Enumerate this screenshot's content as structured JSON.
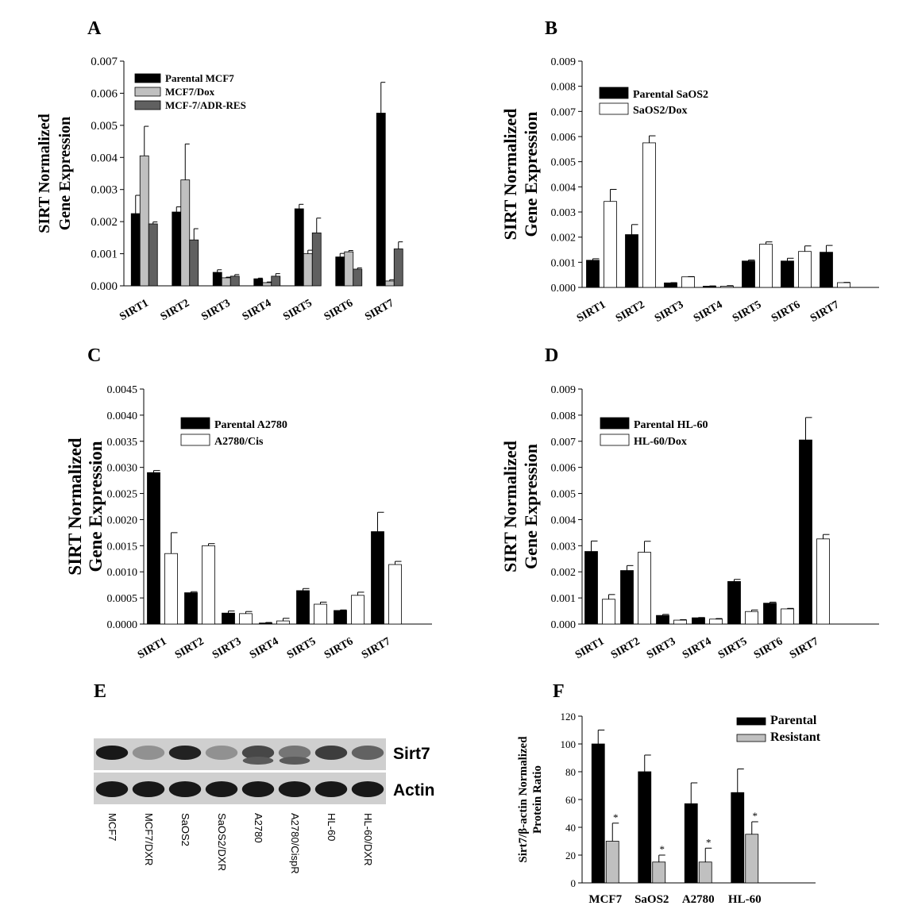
{
  "chart_data": [
    {
      "panel": "A",
      "type": "bar",
      "categories": [
        "SIRT1",
        "SIRT2",
        "SIRT3",
        "SIRT4",
        "SIRT5",
        "SIRT6",
        "SIRT7"
      ],
      "ylabel_lines": [
        "SIRT Normalized",
        "Gene Expression"
      ],
      "ylim": [
        0,
        0.007
      ],
      "yticks": [
        "0.000",
        "0.001",
        "0.002",
        "0.003",
        "0.004",
        "0.005",
        "0.006",
        "0.007"
      ],
      "legend_position": "top-left",
      "series": [
        {
          "name": "Parental MCF7",
          "color": "#000000",
          "values": [
            0.00225,
            0.0023,
            0.00042,
            0.00022,
            0.0024,
            0.0009,
            0.00538
          ],
          "errors": [
            0.00057,
            0.00016,
            8e-05,
            2e-05,
            0.00014,
            0.00011,
            0.00096
          ]
        },
        {
          "name": "MCF7/Dox",
          "color": "#c0c0c0",
          "values": [
            0.00405,
            0.0033,
            0.00025,
            0.0001,
            0.001,
            0.00106,
            0.00015
          ],
          "errors": [
            0.00092,
            0.00112,
            2e-05,
            2e-05,
            0.00011,
            4e-05,
            4e-05
          ]
        },
        {
          "name": "MCF-7/ADR-RES",
          "color": "#606060",
          "values": [
            0.00193,
            0.00143,
            0.0003,
            0.0003,
            0.00165,
            0.00052,
            0.00115
          ],
          "errors": [
            6e-05,
            0.00035,
            5e-05,
            8e-05,
            0.00046,
            4e-05,
            0.00022
          ]
        }
      ]
    },
    {
      "panel": "B",
      "type": "bar",
      "categories": [
        "SIRT1",
        "SIRT2",
        "SIRT3",
        "SIRT4",
        "SIRT5",
        "SIRT6",
        "SIRT7"
      ],
      "ylabel_lines": [
        "SIRT Normalized",
        "Gene Expression"
      ],
      "ylim": [
        0,
        0.009
      ],
      "yticks": [
        "0.000",
        "0.001",
        "0.002",
        "0.003",
        "0.004",
        "0.005",
        "0.006",
        "0.007",
        "0.008",
        "0.009"
      ],
      "legend_position": "top-left",
      "series": [
        {
          "name": "Parental SaOS2",
          "color": "#000000",
          "values": [
            0.00108,
            0.0021,
            0.00018,
            5e-05,
            0.00105,
            0.00105,
            0.0014
          ],
          "errors": [
            6e-05,
            0.0004,
            1e-05,
            1e-05,
            4e-05,
            0.00011,
            0.00027
          ]
        },
        {
          "name": "SaOS2/Dox",
          "color": "#ffffff",
          "values": [
            0.00342,
            0.00575,
            0.00042,
            5e-05,
            0.00172,
            0.00143,
            0.00019
          ],
          "errors": [
            0.00048,
            0.00028,
            1e-05,
            2e-05,
            9e-05,
            0.00022,
            1e-05
          ]
        }
      ]
    },
    {
      "panel": "C",
      "type": "bar",
      "categories": [
        "SIRT1",
        "SIRT2",
        "SIRT3",
        "SIRT4",
        "SIRT5",
        "SIRT6",
        "SIRT7"
      ],
      "ylabel_lines": [
        "SIRT Normalized",
        "Gene Expression"
      ],
      "ylim": [
        0,
        0.0045
      ],
      "yticks": [
        "0.0000",
        "0.0005",
        "0.0010",
        "0.0015",
        "0.0020",
        "0.0025",
        "0.0030",
        "0.0035",
        "0.0040",
        "0.0045"
      ],
      "legend_position": "top-left",
      "series": [
        {
          "name": "Parental A2780",
          "color": "#000000",
          "values": [
            0.0029,
            0.0006,
            0.00021,
            2e-05,
            0.00064,
            0.00026,
            0.00177
          ],
          "errors": [
            4e-05,
            2e-05,
            4e-05,
            1e-05,
            4e-05,
            1e-05,
            0.00037
          ]
        },
        {
          "name": "A2780/Cis",
          "color": "#ffffff",
          "values": [
            0.00135,
            0.0015,
            0.0002,
            6e-05,
            0.00038,
            0.00055,
            0.00114
          ],
          "errors": [
            0.0004,
            4e-05,
            4e-05,
            5e-05,
            4e-05,
            6e-05,
            6e-05
          ]
        }
      ]
    },
    {
      "panel": "D",
      "type": "bar",
      "categories": [
        "SIRT1",
        "SIRT2",
        "SIRT3",
        "SIRT4",
        "SIRT5",
        "SIRT6",
        "SIRT7"
      ],
      "ylabel_lines": [
        "SIRT Normalized",
        "Gene Expression"
      ],
      "ylim": [
        0,
        0.009
      ],
      "yticks": [
        "0.000",
        "0.001",
        "0.002",
        "0.003",
        "0.004",
        "0.005",
        "0.006",
        "0.007",
        "0.008",
        "0.009"
      ],
      "legend_position": "top-left",
      "series": [
        {
          "name": "Parental HL-60",
          "color": "#000000",
          "values": [
            0.00278,
            0.00205,
            0.00033,
            0.00024,
            0.00163,
            0.0008,
            0.00705
          ],
          "errors": [
            0.0004,
            0.00019,
            4e-05,
            1e-05,
            8e-05,
            4e-05,
            0.00086
          ]
        },
        {
          "name": "HL-60/Dox",
          "color": "#ffffff",
          "values": [
            0.00095,
            0.00275,
            0.00015,
            0.00019,
            0.00048,
            0.00058,
            0.00326
          ],
          "errors": [
            0.00018,
            0.00042,
            2e-05,
            2e-05,
            6e-05,
            2e-05,
            0.00017
          ]
        }
      ]
    },
    {
      "panel": "E",
      "type": "blot",
      "lanes": [
        "MCF7",
        "MCF7/DXR",
        "SaOS2",
        "SaOS2/DXR",
        "A2780",
        "A2780/CispR",
        "HL-60",
        "HL-60/DXR"
      ],
      "rows": [
        {
          "label": "Sirt7",
          "intensity": [
            0.95,
            0.3,
            0.9,
            0.3,
            0.7,
            0.45,
            0.75,
            0.55
          ]
        },
        {
          "label": "Actin",
          "intensity": [
            0.95,
            0.95,
            0.95,
            0.95,
            0.95,
            0.95,
            0.95,
            0.95
          ]
        }
      ]
    },
    {
      "panel": "F",
      "type": "bar",
      "categories": [
        "MCF7",
        "SaOS2",
        "A2780",
        "HL-60"
      ],
      "ylabel_lines": [
        "Sirt7/β-actin Normalized",
        "Protein Ratio"
      ],
      "ylim": [
        0,
        120
      ],
      "yticks": [
        "0",
        "20",
        "40",
        "60",
        "80",
        "100",
        "120"
      ],
      "legend_position": "top-right",
      "significance_marker": "*",
      "series": [
        {
          "name": "Parental",
          "color": "#000000",
          "values": [
            100,
            80,
            57,
            65
          ],
          "errors": [
            10,
            12,
            15,
            17
          ]
        },
        {
          "name": "Resistant",
          "color": "#c0c0c0",
          "values": [
            30,
            15,
            15,
            35
          ],
          "errors": [
            13,
            5,
            10,
            9
          ]
        }
      ]
    }
  ]
}
